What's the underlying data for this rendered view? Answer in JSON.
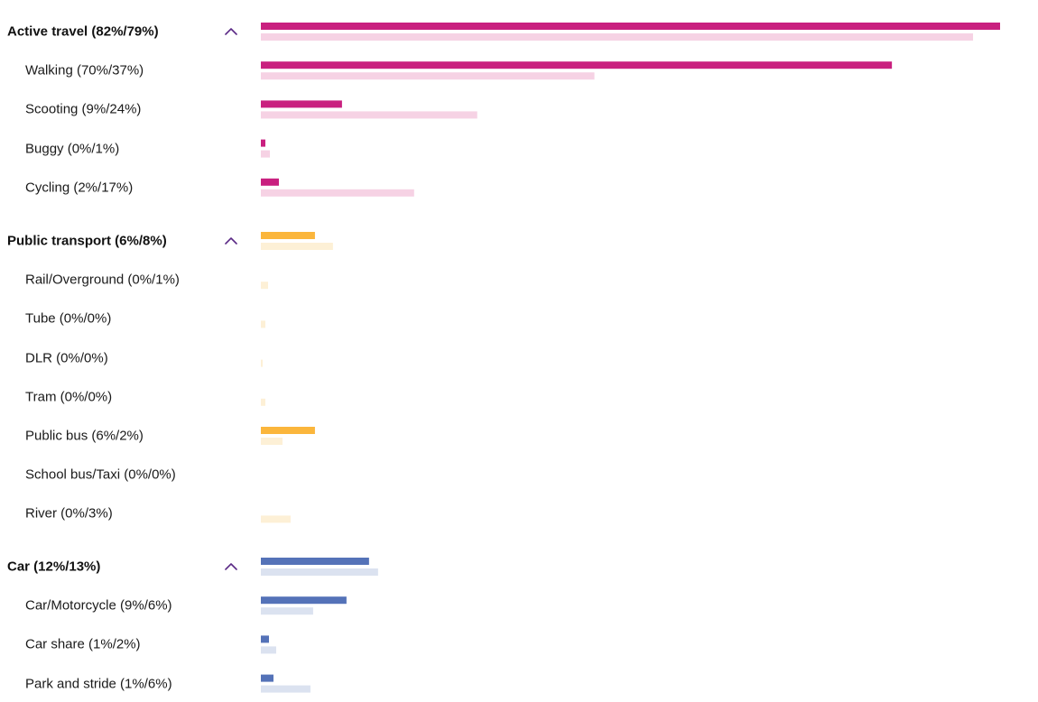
{
  "colors": {
    "active": {
      "primary": "#c9207f",
      "secondary": "#f6d2e4"
    },
    "public": {
      "primary": "#fbb63c",
      "secondary": "#fdf0d6"
    },
    "car": {
      "primary": "#5472b8",
      "secondary": "#dbe2f0"
    }
  },
  "icons": {
    "toggle": "chevron-up-icon"
  },
  "chart_data": {
    "type": "bar",
    "orientation": "horizontal",
    "xlim": [
      0,
      82
    ],
    "grid": false,
    "groups": [
      {
        "key": "active",
        "label": "Active travel (82%/79%)",
        "values": [
          82,
          79
        ],
        "items": [
          {
            "label": "Walking (70%/37%)",
            "values": [
              70,
              37
            ]
          },
          {
            "label": "Scooting (9%/24%)",
            "values": [
              9,
              24
            ]
          },
          {
            "label": "Buggy (0%/1%)",
            "values": [
              0.5,
              1
            ]
          },
          {
            "label": "Cycling (2%/17%)",
            "values": [
              2,
              17
            ]
          }
        ]
      },
      {
        "key": "public",
        "label": "Public transport (6%/8%)",
        "values": [
          6,
          8
        ],
        "items": [
          {
            "label": "Rail/Overground (0%/1%)",
            "values": [
              0,
              0.8
            ]
          },
          {
            "label": "Tube (0%/0%)",
            "values": [
              0,
              0.5
            ]
          },
          {
            "label": "DLR (0%/0%)",
            "values": [
              0,
              0.2
            ]
          },
          {
            "label": "Tram (0%/0%)",
            "values": [
              0,
              0.5
            ]
          },
          {
            "label": "Public bus (6%/2%)",
            "values": [
              6,
              2.4
            ]
          },
          {
            "label": "School bus/Taxi (0%/0%)",
            "values": [
              0,
              0
            ]
          },
          {
            "label": "River (0%/3%)",
            "values": [
              0,
              3.3
            ]
          }
        ]
      },
      {
        "key": "car",
        "label": "Car (12%/13%)",
        "values": [
          12,
          13
        ],
        "items": [
          {
            "label": "Car/Motorcycle (9%/6%)",
            "values": [
              9.5,
              5.8
            ]
          },
          {
            "label": "Car share (1%/2%)",
            "values": [
              0.9,
              1.7
            ]
          },
          {
            "label": "Park and stride (1%/6%)",
            "values": [
              1.4,
              5.5
            ]
          }
        ]
      }
    ]
  }
}
